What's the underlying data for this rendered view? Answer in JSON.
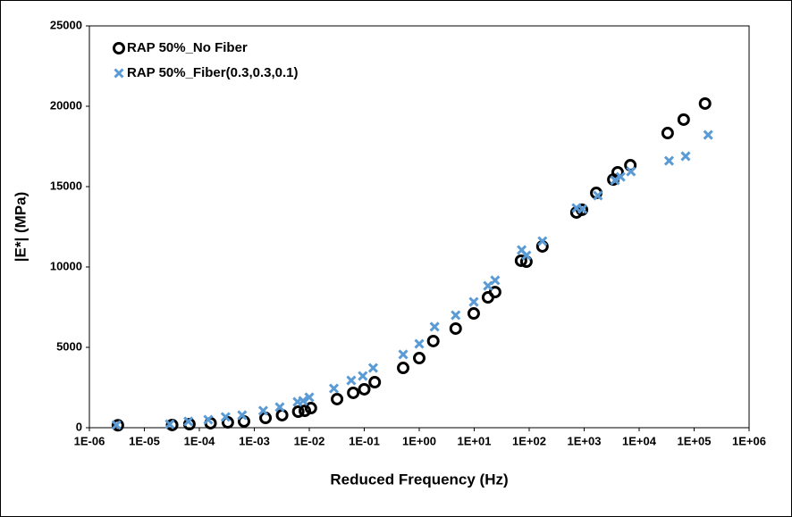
{
  "chart_data": {
    "type": "scatter",
    "x_label": "Reduced Frequency (Hz)",
    "y_label": "|E*| (MPa)",
    "xscale": "log",
    "xlim": [
      1e-06,
      1000000
    ],
    "ylim": [
      0,
      25000
    ],
    "xticks": [
      {
        "value": 1e-06,
        "label": "1E-06"
      },
      {
        "value": 1e-05,
        "label": "1E-05"
      },
      {
        "value": 0.0001,
        "label": "1E-04"
      },
      {
        "value": 0.001,
        "label": "1E-03"
      },
      {
        "value": 0.01,
        "label": "1E-02"
      },
      {
        "value": 0.1,
        "label": "1E-01"
      },
      {
        "value": 1,
        "label": "1E+00"
      },
      {
        "value": 10,
        "label": "1E+01"
      },
      {
        "value": 100,
        "label": "1E+02"
      },
      {
        "value": 1000,
        "label": "1E+03"
      },
      {
        "value": 10000,
        "label": "1E+04"
      },
      {
        "value": 100000,
        "label": "1E+05"
      },
      {
        "value": 1000000,
        "label": "1E+06"
      }
    ],
    "yticks": [
      0,
      5000,
      10000,
      15000,
      20000,
      25000
    ],
    "grid": false,
    "legend": "upper left",
    "series": [
      {
        "name": "RAP 50%_No Fiber",
        "color": "#000000",
        "marker": "circle",
        "x": [
          3.3e-06,
          3.2e-05,
          6.6e-05,
          0.00016,
          0.00033,
          0.00065,
          0.0016,
          0.0032,
          0.0063,
          0.0083,
          0.0107,
          0.032,
          0.063,
          0.1,
          0.155,
          0.51,
          1.0,
          1.8,
          4.6,
          9.8,
          17.8,
          24,
          71,
          89,
          174,
          724,
          912,
          1660,
          3390,
          4070,
          6920,
          33000,
          64600,
          158000
        ],
        "values": [
          150,
          170,
          220,
          280,
          330,
          390,
          610,
          780,
          1000,
          1050,
          1220,
          1780,
          2170,
          2390,
          2830,
          3720,
          4330,
          5390,
          6170,
          7110,
          8110,
          8440,
          10390,
          10330,
          11280,
          13390,
          13560,
          14610,
          15440,
          15890,
          16330,
          18330,
          19170,
          20170
        ]
      },
      {
        "name": "RAP 50%_Fiber(0.3,0.3,0.1)",
        "color": "#5b9bd5",
        "marker": "x",
        "x": [
          3.1e-06,
          2.9e-05,
          6.3e-05,
          0.000145,
          0.0003,
          0.0006,
          0.00145,
          0.0029,
          0.0061,
          0.0077,
          0.01,
          0.028,
          0.058,
          0.094,
          0.145,
          0.51,
          1.0,
          1.9,
          4.6,
          9.8,
          17.8,
          24,
          73,
          89,
          174,
          724,
          930,
          1780,
          3640,
          4600,
          7100,
          35000,
          70000,
          180000
        ],
        "values": [
          170,
          220,
          390,
          500,
          670,
          780,
          1060,
          1280,
          1610,
          1670,
          1890,
          2440,
          2940,
          3220,
          3720,
          4560,
          5220,
          6280,
          7000,
          7830,
          8830,
          9170,
          11060,
          10720,
          11610,
          13670,
          13610,
          14440,
          15390,
          15610,
          15940,
          16610,
          16890,
          18220
        ]
      }
    ]
  }
}
